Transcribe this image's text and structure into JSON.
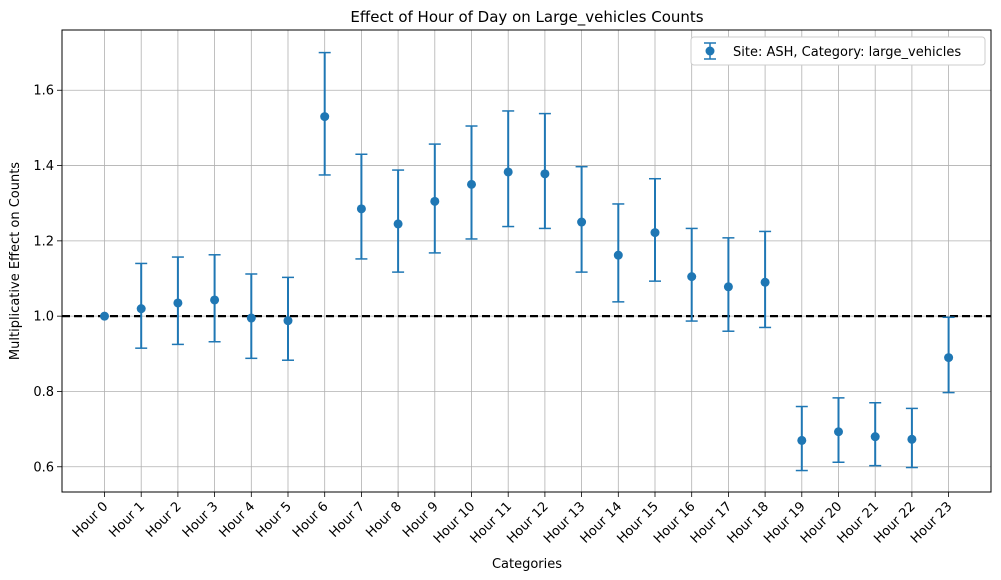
{
  "chart_data": {
    "type": "scatter",
    "title": "Effect of Hour of Day on Large_vehicles Counts",
    "xlabel": "Categories",
    "ylabel": "Multiplicative Effect on Counts",
    "categories": [
      "Hour 0",
      "Hour 1",
      "Hour 2",
      "Hour 3",
      "Hour 4",
      "Hour 5",
      "Hour 6",
      "Hour 7",
      "Hour 8",
      "Hour 9",
      "Hour 10",
      "Hour 11",
      "Hour 12",
      "Hour 13",
      "Hour 14",
      "Hour 15",
      "Hour 16",
      "Hour 17",
      "Hour 18",
      "Hour 19",
      "Hour 20",
      "Hour 21",
      "Hour 22",
      "Hour 23"
    ],
    "series": [
      {
        "name": "Site: ASH, Category: large_vehicles",
        "color": "#1f77b4",
        "values": [
          1.0,
          1.02,
          1.035,
          1.043,
          0.995,
          0.988,
          1.53,
          1.285,
          1.245,
          1.305,
          1.35,
          1.383,
          1.378,
          1.25,
          1.162,
          1.222,
          1.105,
          1.078,
          1.09,
          0.67,
          0.693,
          0.68,
          0.673,
          0.89
        ],
        "lower": [
          1.0,
          0.915,
          0.925,
          0.932,
          0.888,
          0.883,
          1.375,
          1.152,
          1.117,
          1.168,
          1.205,
          1.238,
          1.233,
          1.117,
          1.038,
          1.093,
          0.987,
          0.96,
          0.97,
          0.59,
          0.612,
          0.603,
          0.598,
          0.797
        ],
        "upper": [
          1.0,
          1.14,
          1.157,
          1.163,
          1.112,
          1.103,
          1.7,
          1.43,
          1.388,
          1.457,
          1.505,
          1.545,
          1.538,
          1.397,
          1.298,
          1.365,
          1.233,
          1.208,
          1.225,
          0.76,
          0.783,
          0.77,
          0.755,
          0.997
        ]
      }
    ],
    "reference_line": {
      "y": 1.0,
      "style": "dashed",
      "color": "#000000"
    },
    "yticks": [
      "0.6",
      "0.8",
      "1.0",
      "1.2",
      "1.4",
      "1.6"
    ],
    "ylim": [
      0.533,
      1.76
    ],
    "grid": true,
    "legend_position": "top-right"
  }
}
